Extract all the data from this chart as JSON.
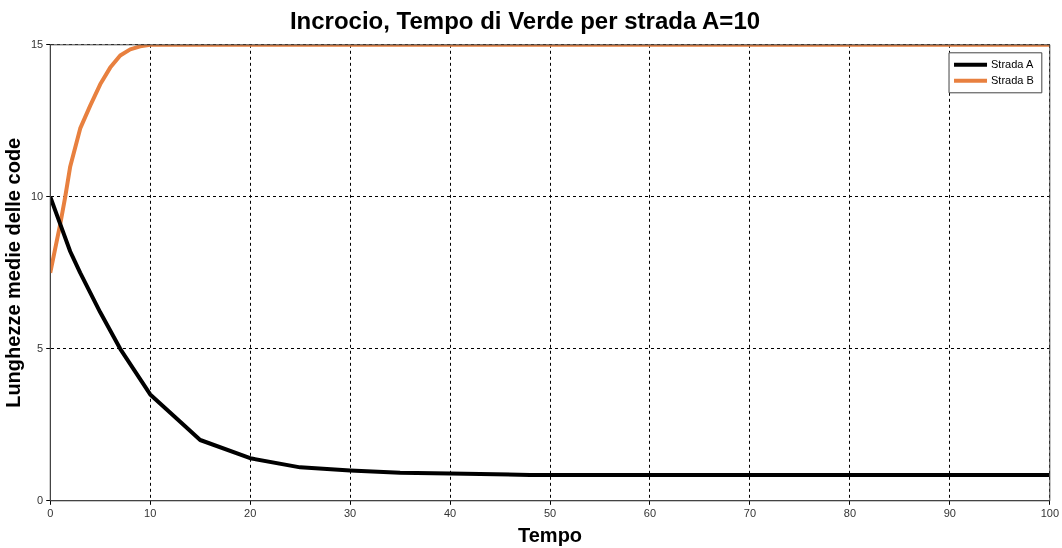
{
  "chart_data": {
    "type": "line",
    "title": "Incrocio, Tempo di Verde per strada A=10",
    "xlabel": "Tempo",
    "ylabel": "Lunghezze medie delle code",
    "xlim": [
      0,
      100
    ],
    "xticks": [
      0,
      10,
      20,
      30,
      40,
      50,
      60,
      70,
      80,
      90,
      100
    ],
    "ylim": [
      0,
      15
    ],
    "yticks": [
      0,
      5,
      10,
      15
    ],
    "grid": true,
    "legend": "top right",
    "line_style": "solid",
    "marker": "none",
    "series": [
      {
        "name": "Strada A",
        "color": "#000000",
        "x": [
          0,
          1,
          2,
          3,
          5,
          7,
          10,
          13,
          15,
          20,
          25,
          30,
          35,
          40,
          48,
          60,
          80,
          100
        ],
        "values": [
          10,
          9.1,
          8.2,
          7.5,
          6.2,
          5,
          3.5,
          2.6,
          2,
          1.4,
          1.1,
          1,
          0.92,
          0.9,
          0.85,
          0.85,
          0.85,
          0.85
        ]
      },
      {
        "name": "Strada B",
        "color": "#e8803f",
        "x": [
          0,
          1,
          1.5,
          2,
          3,
          4,
          5,
          6,
          7,
          8,
          9,
          10,
          11,
          100
        ],
        "values": [
          7.5,
          9.1,
          10,
          11,
          12.25,
          13,
          13.7,
          14.25,
          14.65,
          14.85,
          14.95,
          15,
          15,
          15
        ]
      }
    ]
  }
}
